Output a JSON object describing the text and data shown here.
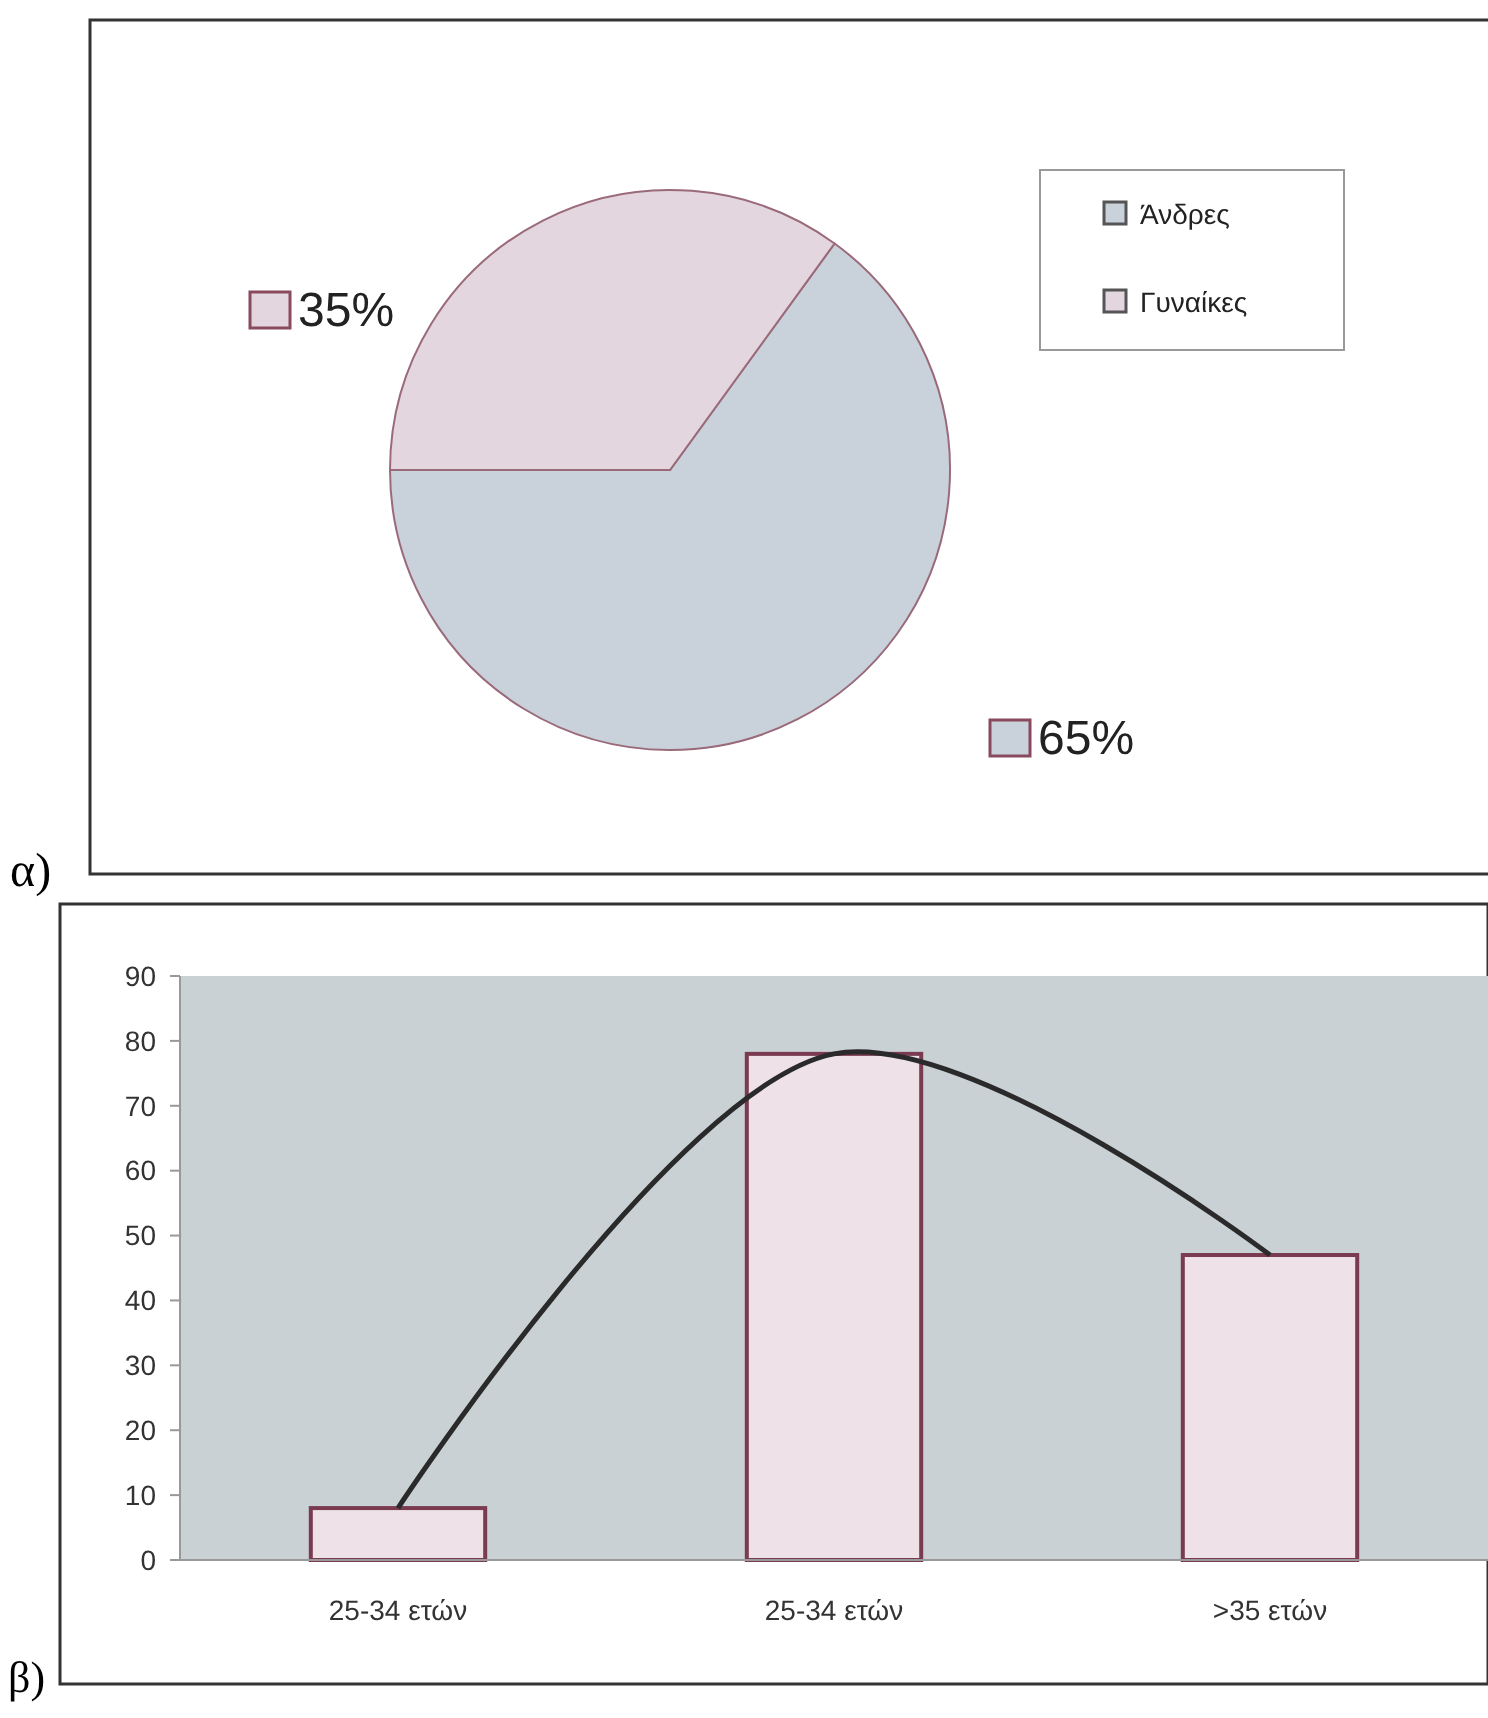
{
  "chart_data": [
    {
      "type": "pie",
      "categories": [
        "Άνδρες",
        "Γυναίκες"
      ],
      "values": [
        65,
        35
      ],
      "colors": [
        "#c9d1da",
        "#e3d6de"
      ],
      "value_labels": [
        "65%",
        "35%"
      ],
      "legend": "top right",
      "annotations": [
        "α)"
      ]
    },
    {
      "type": "bar",
      "categories": [
        "25-34 ετών",
        "25-34 ετών",
        ">35 ετών"
      ],
      "series": [
        {
          "type": "bar",
          "color": "#eee2e8",
          "values": [
            8,
            78,
            47
          ]
        },
        {
          "type": "line",
          "color": "#2a2a2a",
          "values": [
            8,
            78,
            47
          ]
        }
      ],
      "ylim": [
        0,
        90
      ],
      "yticks": [
        0,
        10,
        20,
        30,
        40,
        50,
        60,
        70,
        80,
        90
      ],
      "grid": false,
      "legend": false,
      "annotations": [
        "β)"
      ]
    }
  ]
}
